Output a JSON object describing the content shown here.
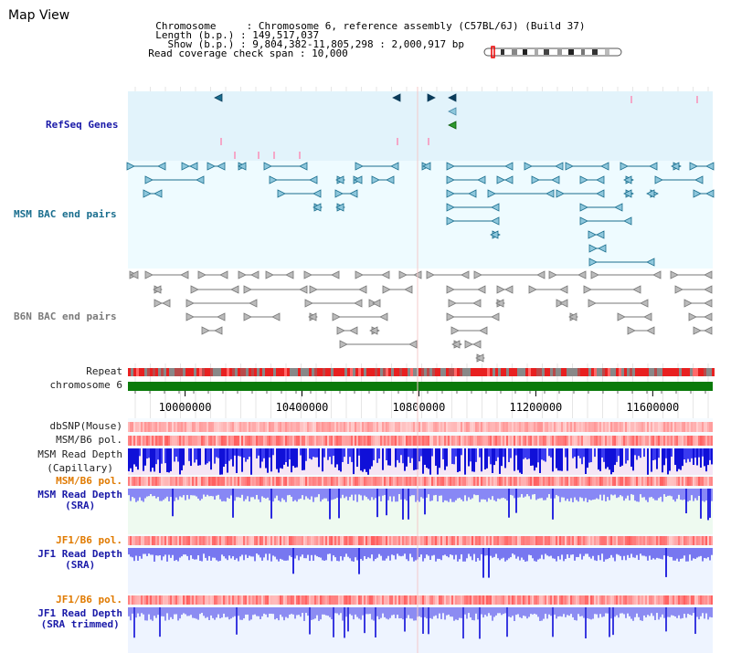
{
  "title": "Map View",
  "header": {
    "chromosome_key": "Chromosome     : ",
    "chromosome_val": "Chromosome 6, reference assembly (C57BL/6J) (Build 37)",
    "length_key": "Length (b.p.) : ",
    "length_val": "149,517,037",
    "show_key": "  Show (b.p.) : ",
    "show_val": "9,804,382-11,805,298 : 2,000,917 bp",
    "coverage_key": "Read coverage check span : ",
    "coverage_val": "10,000"
  },
  "tracks": {
    "refseq": "RefSeq Genes",
    "msm_bac": "MSM BAC end pairs",
    "b6n_bac": "B6N BAC end pairs",
    "repeat": "Repeat",
    "chromosome": "chromosome 6",
    "dbsnp": "dbSNP(Mouse)",
    "msm_b6_pol_1": "MSM/B6 pol.",
    "msm_read_depth_cap_1": "MSM Read Depth",
    "msm_read_depth_cap_2": "(Capillary)",
    "msm_b6_pol_2": "MSM/B6 pol.",
    "msm_read_depth_sra_1": "MSM Read Depth",
    "msm_read_depth_sra_2": "(SRA)",
    "jf1_b6_pol_1": "JF1/B6 pol.",
    "jf1_read_depth_sra_1": "JF1 Read Depth",
    "jf1_read_depth_sra_2": "(SRA)",
    "jf1_b6_pol_2": "JF1/B6 pol.",
    "jf1_read_depth_trim_1": "JF1 Read Depth",
    "jf1_read_depth_trim_2": "(SRA trimmed)"
  },
  "axis": {
    "view_start": 9804382,
    "view_end": 11805298,
    "ticks": [
      "10000000",
      "10400000",
      "10800000",
      "11200000",
      "11600000"
    ],
    "tick_values": [
      10000000,
      10400000,
      10800000,
      11200000,
      11600000
    ]
  },
  "colors": {
    "refseq_bg": "#e2f3fb",
    "bac_bg": "#eefbff",
    "chromosome_bar": "#0a7a0a",
    "depth_fill": "#7777f0",
    "depth_dark": "#2a2ae0",
    "pol_red": "#e83030"
  }
}
